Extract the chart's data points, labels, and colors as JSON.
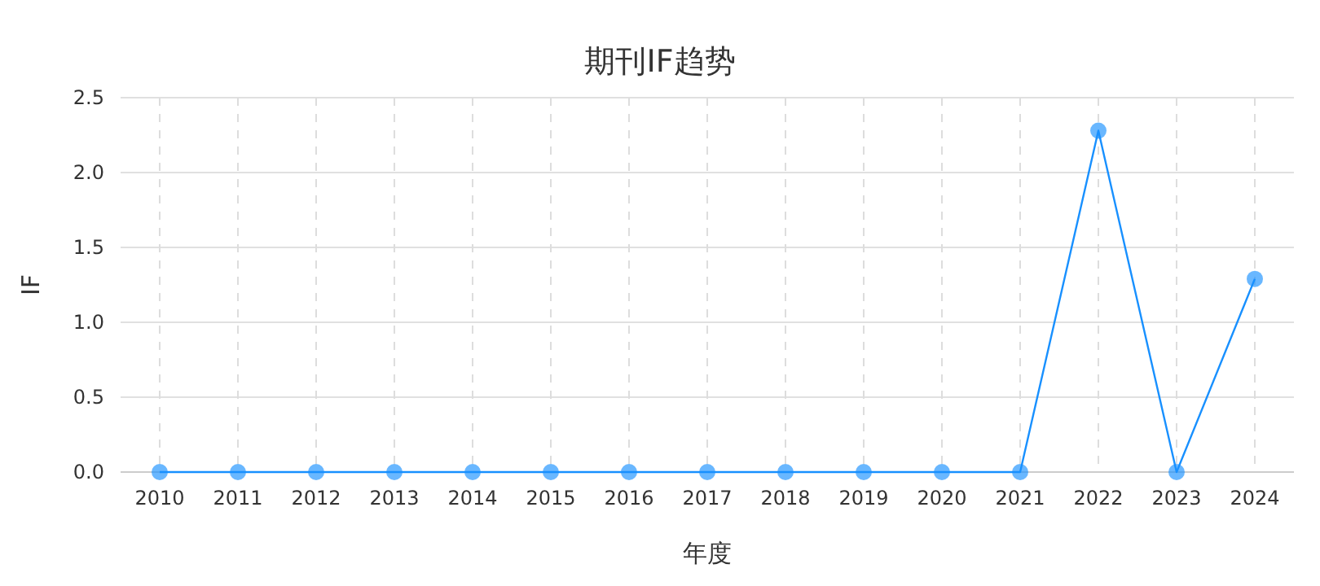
{
  "chart_data": {
    "type": "line",
    "title": "期刊IF趋势",
    "xlabel": "年度",
    "ylabel": "IF",
    "categories": [
      "2010",
      "2011",
      "2012",
      "2013",
      "2014",
      "2015",
      "2016",
      "2017",
      "2018",
      "2019",
      "2020",
      "2021",
      "2022",
      "2023",
      "2024"
    ],
    "series": [
      {
        "color": "#1890ff",
        "values": [
          0,
          0,
          0,
          0,
          0,
          0,
          0,
          0,
          0,
          0,
          0,
          0,
          2.28,
          0,
          1.29
        ]
      }
    ],
    "ylim": [
      0,
      2.5
    ],
    "yticks": [
      {
        "value": 0,
        "label": "0.0"
      },
      {
        "value": 0.5,
        "label": "0.5"
      },
      {
        "value": 1,
        "label": "1.0"
      },
      {
        "value": 1.5,
        "label": "1.5"
      },
      {
        "value": 2,
        "label": "2.0"
      },
      {
        "value": 2.5,
        "label": "2.5"
      }
    ],
    "grid": true,
    "marker": "circle",
    "line_style": "solid"
  }
}
